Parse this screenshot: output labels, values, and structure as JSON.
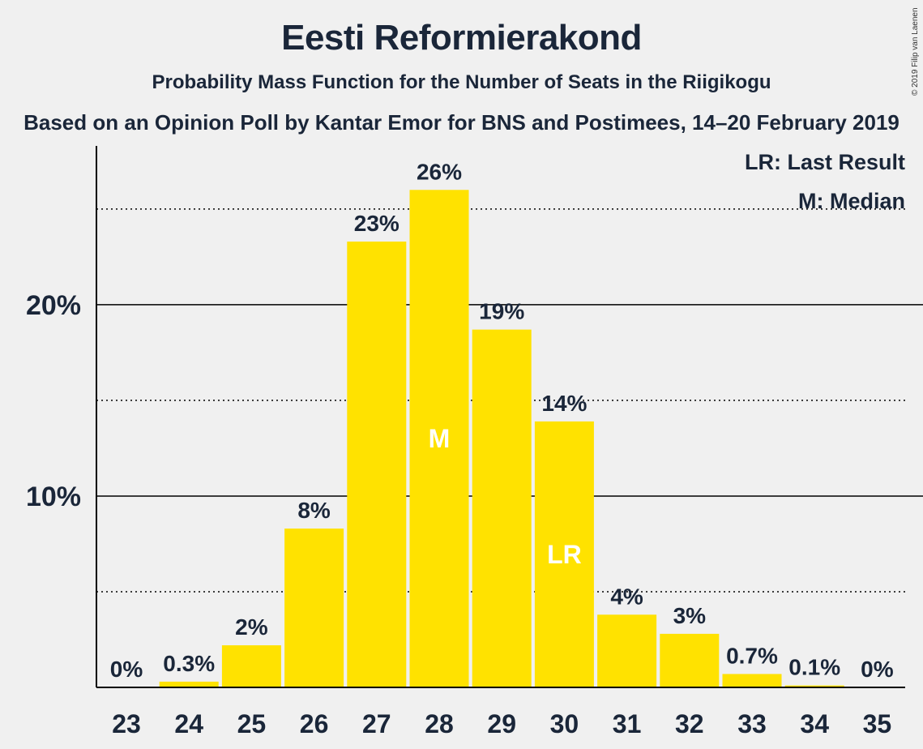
{
  "chart_data": {
    "type": "bar",
    "title": "Eesti Reformierakond",
    "subtitle": "Probability Mass Function for the Number of Seats in the Riigikogu",
    "subtitle2": "Based on an Opinion Poll by Kantar Emor for BNS and Postimees, 14–20 February 2019",
    "copyright": "© 2019 Filip van Laenen",
    "categories": [
      "23",
      "24",
      "25",
      "26",
      "27",
      "28",
      "29",
      "30",
      "31",
      "32",
      "33",
      "34",
      "35"
    ],
    "values": [
      0,
      0.3,
      2.2,
      8.3,
      23.3,
      26.0,
      18.7,
      13.9,
      3.8,
      2.8,
      0.7,
      0.1,
      0
    ],
    "labels": [
      "0%",
      "0.3%",
      "2%",
      "8%",
      "23%",
      "26%",
      "19%",
      "14%",
      "4%",
      "3%",
      "0.7%",
      "0.1%",
      "0%"
    ],
    "ylim": [
      0,
      28.3
    ],
    "yticks": [
      {
        "value": 10,
        "label": "10%"
      },
      {
        "value": 20,
        "label": "20%"
      }
    ],
    "minor_gridlines": [
      5,
      15,
      25
    ],
    "bar_color": "#ffe200",
    "grid_color": "#000000",
    "median": {
      "category": "28",
      "text": "M"
    },
    "last_result": {
      "category": "30",
      "text": "LR"
    },
    "legend": {
      "placement": "top-right",
      "entries": [
        "LR: Last Result",
        "M: Median"
      ]
    }
  }
}
